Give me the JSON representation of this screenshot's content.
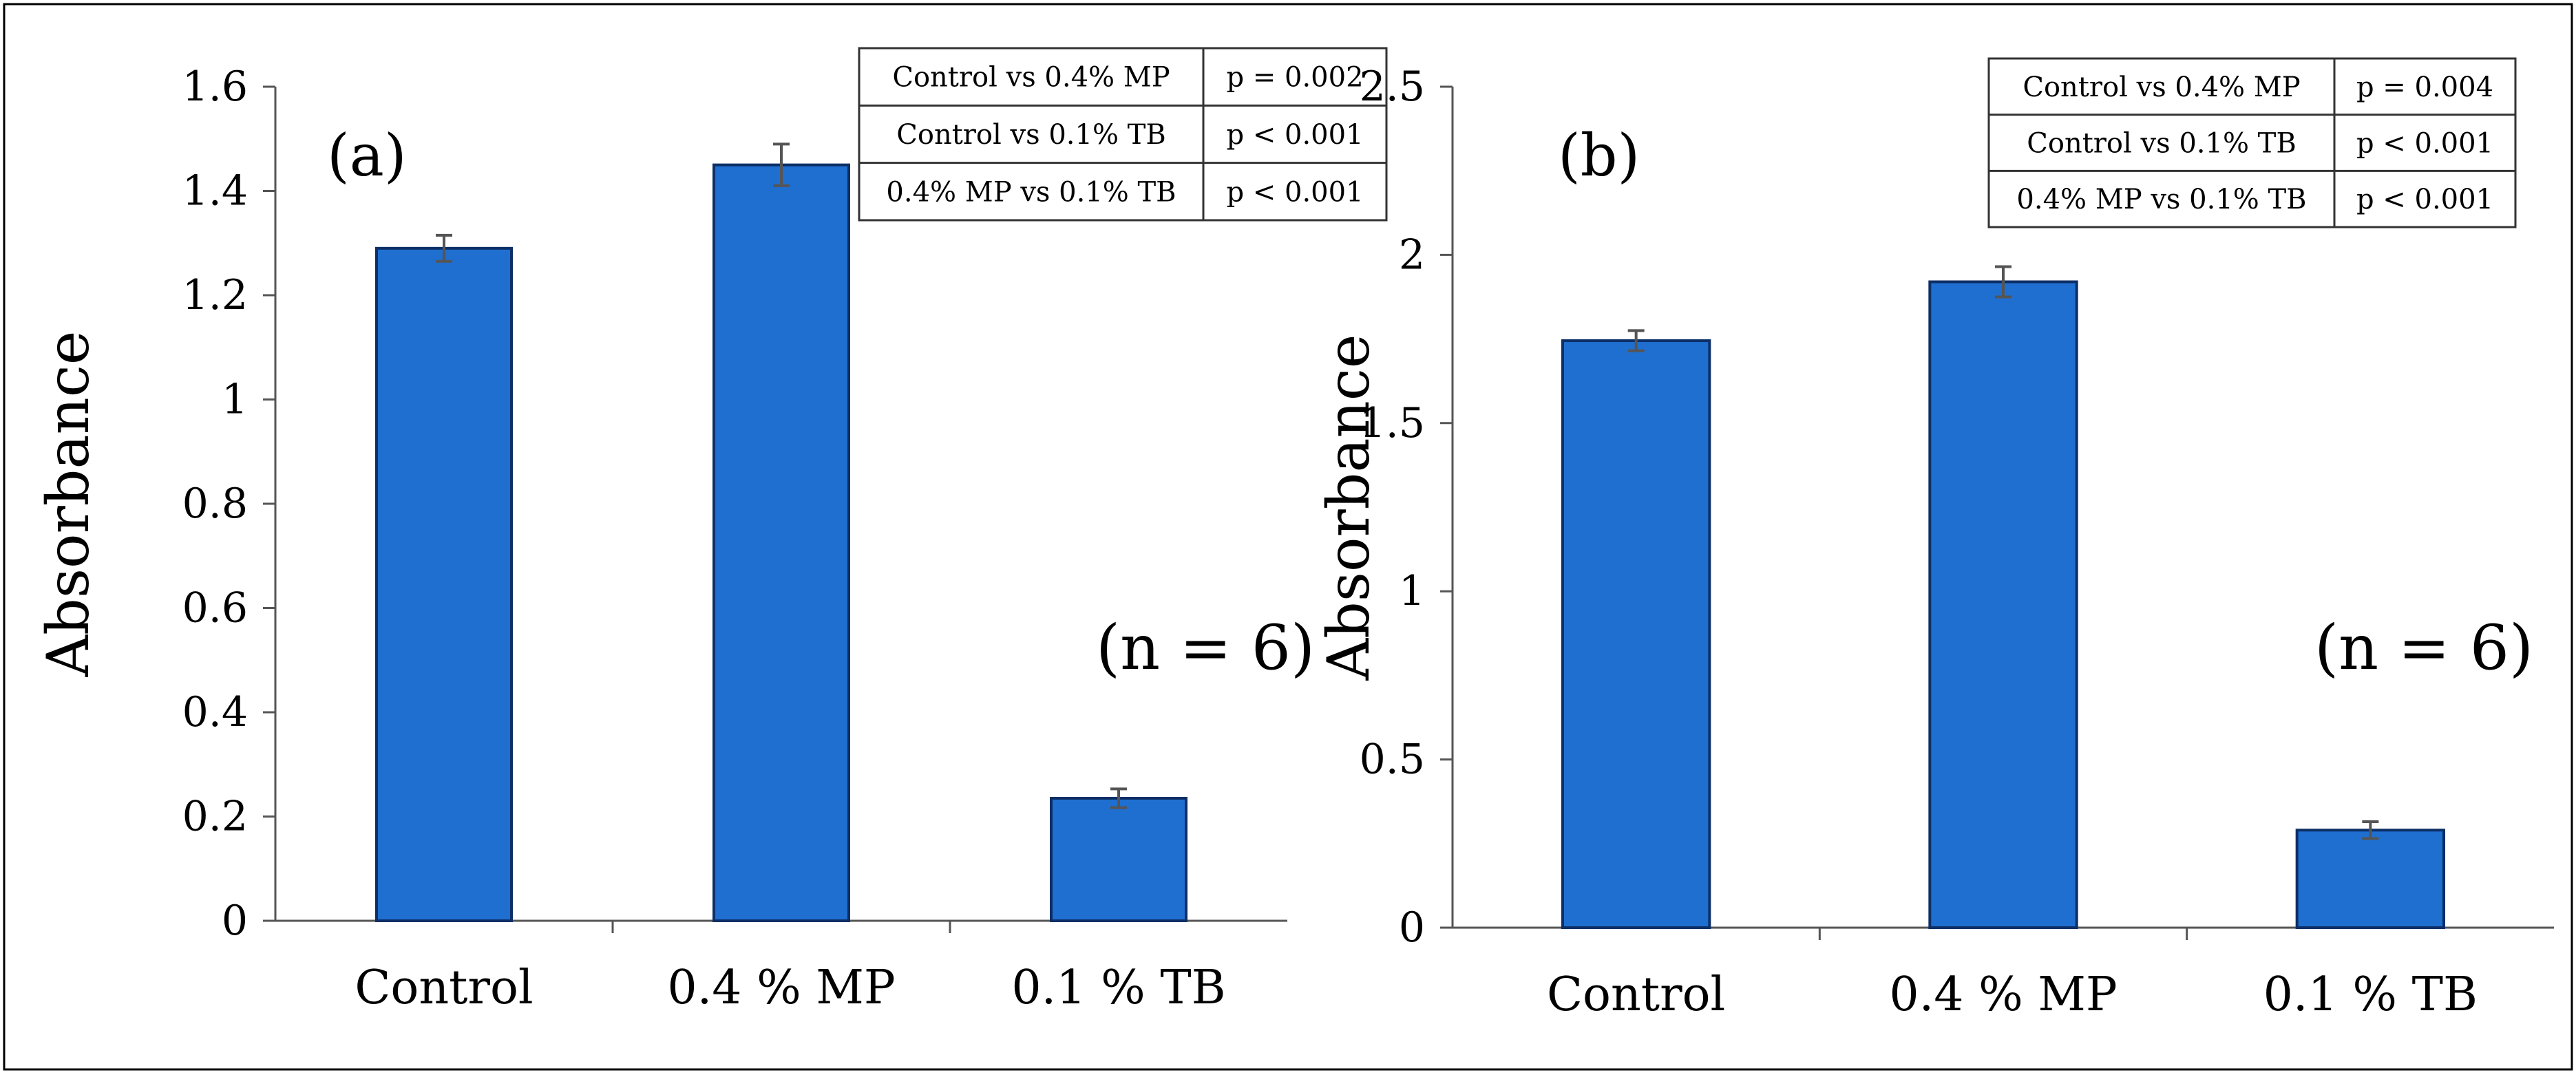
{
  "chart_data": [
    {
      "type": "bar",
      "panel_label": "(a)",
      "categories": [
        "Control",
        "0.4 % MP",
        "0.1 % TB"
      ],
      "values": [
        1.29,
        1.45,
        0.235
      ],
      "errors": [
        0.025,
        0.04,
        0.018
      ],
      "ylabel": "Absorbance",
      "xlabel": "",
      "ylim": [
        0,
        1.6
      ],
      "yticks": [
        "0",
        "0.2",
        "0.4",
        "0.6",
        "0.8",
        "1",
        "1.2",
        "1.4",
        "1.6"
      ],
      "annotation": "(n = 6)",
      "bar_color": "#1f6fd1",
      "stats_table": [
        {
          "comparison": "Control vs 0.4% MP",
          "p": "p = 0.002"
        },
        {
          "comparison": "Control vs 0.1% TB",
          "p": "p < 0.001"
        },
        {
          "comparison": "0.4% MP vs 0.1% TB",
          "p": "p < 0.001"
        }
      ]
    },
    {
      "type": "bar",
      "panel_label": "(b)",
      "categories": [
        "Control",
        "0.4 % MP",
        "0.1 % TB"
      ],
      "values": [
        1.745,
        1.92,
        0.29
      ],
      "errors": [
        0.03,
        0.045,
        0.025
      ],
      "ylabel": "Absorbance",
      "xlabel": "",
      "ylim": [
        0,
        2.5
      ],
      "yticks": [
        "0",
        "0.5",
        "1",
        "1.5",
        "2",
        "2.5"
      ],
      "annotation": "(n = 6)",
      "bar_color": "#1f6fd1",
      "stats_table": [
        {
          "comparison": "Control vs 0.4% MP",
          "p": "p = 0.004"
        },
        {
          "comparison": "Control vs 0.1% TB",
          "p": "p < 0.001"
        },
        {
          "comparison": "0.4% MP vs 0.1% TB",
          "p": "p < 0.001"
        }
      ]
    }
  ]
}
